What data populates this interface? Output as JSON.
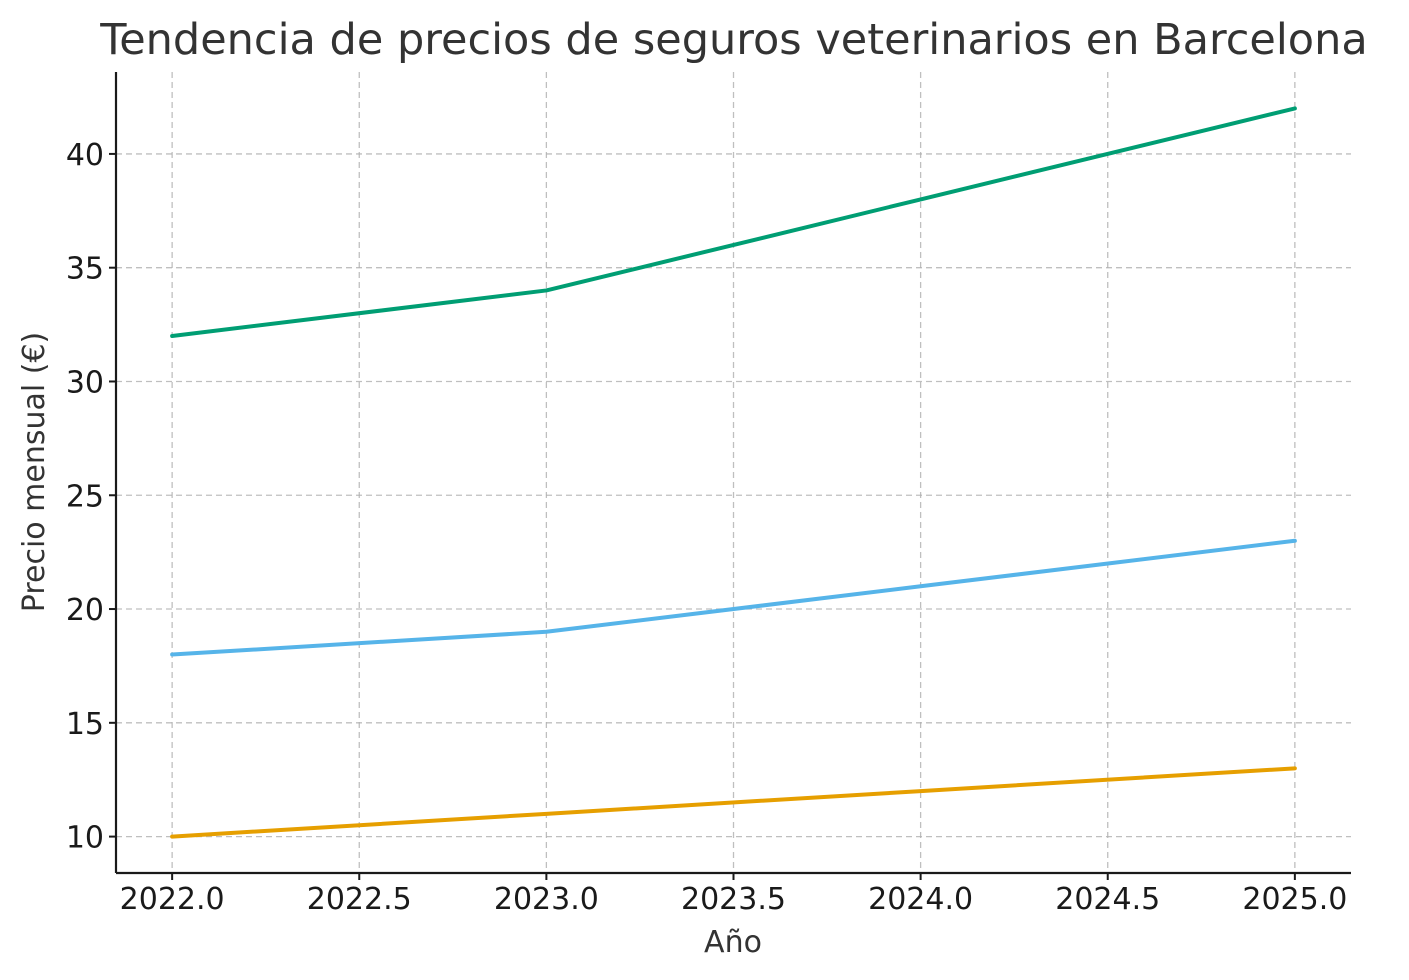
{
  "chart_data": {
    "type": "line",
    "title": "Tendencia de precios de seguros veterinarios en Barcelona",
    "xlabel": "Año",
    "ylabel": "Precio mensual (€)",
    "xlim": [
      2021.85,
      2025.15
    ],
    "ylim": [
      8.4,
      43.6
    ],
    "x_ticks": [
      2022.0,
      2022.5,
      2023.0,
      2023.5,
      2024.0,
      2024.5,
      2025.0
    ],
    "x_tick_labels": [
      "2022.0",
      "2022.5",
      "2023.0",
      "2023.5",
      "2024.0",
      "2024.5",
      "2025.0"
    ],
    "y_ticks": [
      10,
      15,
      20,
      25,
      30,
      35,
      40
    ],
    "y_tick_labels": [
      "10",
      "15",
      "20",
      "25",
      "30",
      "35",
      "40"
    ],
    "grid": true,
    "legend": "none",
    "x": [
      2022,
      2023,
      2024,
      2025
    ],
    "series": [
      {
        "color": "#009E73",
        "values": [
          32,
          34,
          38,
          42
        ]
      },
      {
        "color": "#56B4E9",
        "values": [
          18,
          19,
          21,
          23
        ]
      },
      {
        "color": "#E69F00",
        "values": [
          10,
          11,
          12,
          13
        ]
      }
    ]
  }
}
